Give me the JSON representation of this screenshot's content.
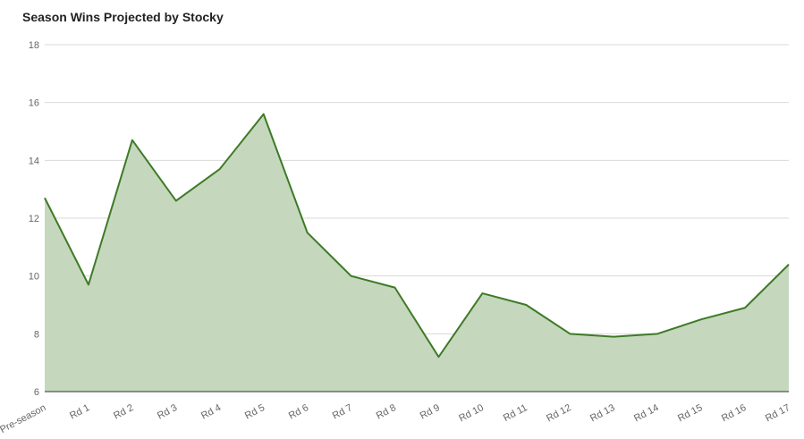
{
  "chart_data": {
    "type": "area",
    "title": "Season Wins Projected by Stocky",
    "xlabel": "",
    "ylabel": "",
    "categories": [
      "Pre-season",
      "Rd 1",
      "Rd 2",
      "Rd 3",
      "Rd 4",
      "Rd 5",
      "Rd 6",
      "Rd 7",
      "Rd 8",
      "Rd 9",
      "Rd 10",
      "Rd 11",
      "Rd 12",
      "Rd 13",
      "Rd 14",
      "Rd 15",
      "Rd 16",
      "Rd 17"
    ],
    "values": [
      12.7,
      9.7,
      14.7,
      12.6,
      13.7,
      15.6,
      11.5,
      10.0,
      9.6,
      7.2,
      9.4,
      9.0,
      8.0,
      7.9,
      8.0,
      8.5,
      8.9,
      10.4
    ],
    "ylim": [
      6,
      18
    ],
    "yticks": [
      "6",
      "8",
      "10",
      "12",
      "14",
      "16",
      "18"
    ],
    "grid": true,
    "legend": "none",
    "colors": {
      "line": "#3e7a26",
      "fill": "#c5d8bd",
      "grid": "#d9d9d9",
      "baseline": "#333333"
    }
  }
}
